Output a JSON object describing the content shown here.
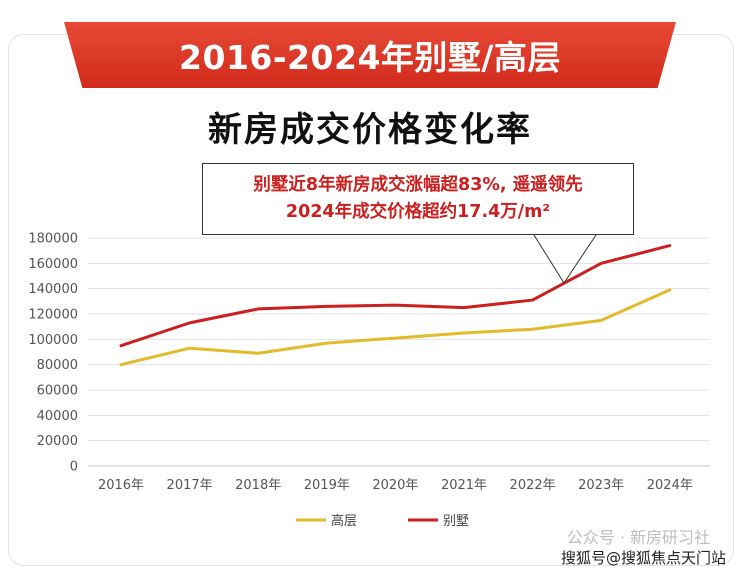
{
  "banner_title": "2016-2024年别墅/高层",
  "subtitle": "新房成交价格变化率",
  "callout": {
    "line1": "别墅近8年新房成交涨幅超83%, 遥遥领先",
    "line2": "2024年成交价格超约17.4万/m²"
  },
  "watermark": {
    "line1": "公众号 · 新房研习社",
    "line2": "搜狐号@搜狐焦点天门站"
  },
  "colors": {
    "high_rise": "#e2ba2a",
    "villa": "#cc1f1f",
    "banner": "#d9301f"
  },
  "chart_data": {
    "type": "line",
    "categories": [
      "2016年",
      "2017年",
      "2018年",
      "2019年",
      "2020年",
      "2021年",
      "2022年",
      "2023年",
      "2024年"
    ],
    "series": [
      {
        "name": "高层",
        "values": [
          80000,
          93000,
          89000,
          97000,
          101000,
          105000,
          108000,
          115000,
          139000
        ]
      },
      {
        "name": "别墅",
        "values": [
          95000,
          113000,
          124000,
          126000,
          127000,
          125000,
          131000,
          160000,
          174000
        ]
      }
    ],
    "yticks": [
      0,
      20000,
      40000,
      60000,
      80000,
      100000,
      120000,
      140000,
      160000,
      180000
    ],
    "ylim": [
      0,
      180000
    ],
    "grid": true,
    "legend_position": "bottom"
  }
}
